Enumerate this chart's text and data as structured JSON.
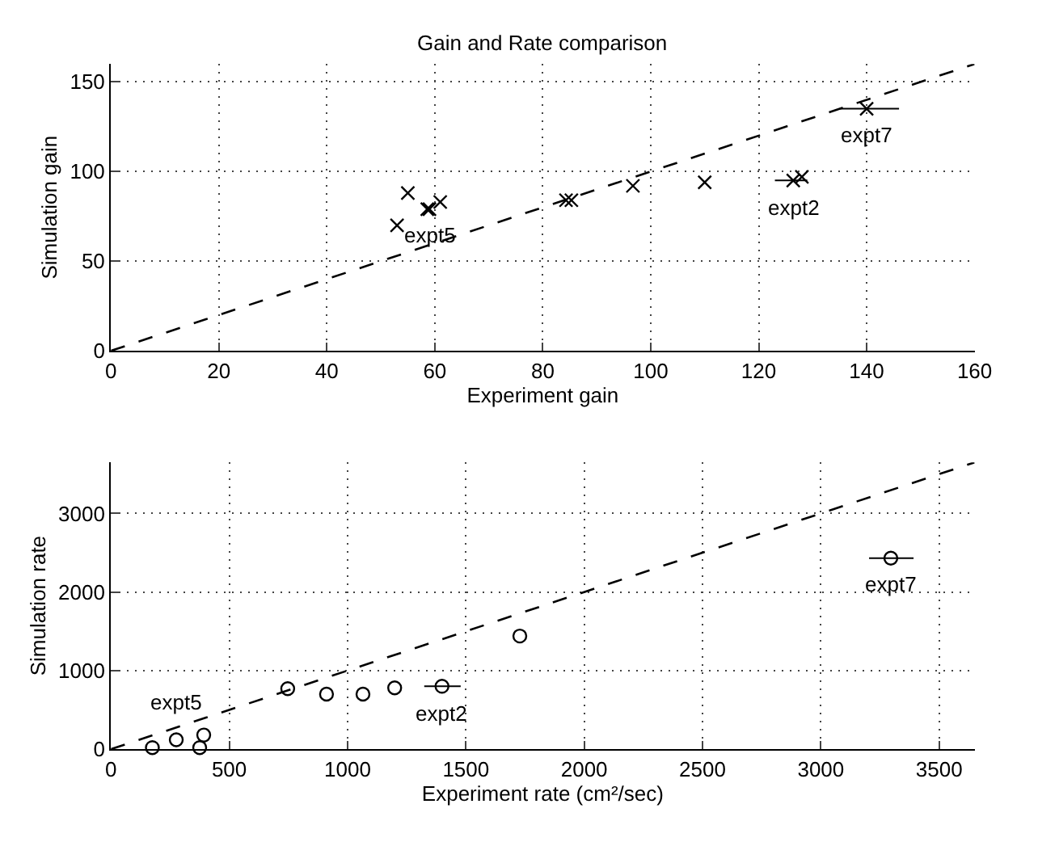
{
  "chart_data": [
    {
      "type": "scatter",
      "title": "Gain and Rate comparison",
      "xlabel": "Experiment gain",
      "ylabel": "Simulation gain",
      "xlim": [
        0,
        160
      ],
      "ylim": [
        0,
        160
      ],
      "xticks": [
        0,
        20,
        40,
        60,
        80,
        100,
        120,
        140,
        160
      ],
      "yticks": [
        0,
        50,
        100,
        150
      ],
      "grid": true,
      "marker": "cross",
      "series": [
        {
          "color": "#000000",
          "x": [
            53,
            55,
            58.6,
            59,
            61,
            84.3,
            85.3,
            96.7,
            110,
            126.4,
            128,
            140
          ],
          "values": [
            70,
            88,
            79,
            79,
            83,
            84,
            84,
            92,
            94,
            95,
            97,
            135
          ],
          "xerrors": [
            null,
            null,
            null,
            null,
            null,
            null,
            null,
            null,
            null,
            [
              123,
              129
            ],
            null,
            [
              135,
              146
            ]
          ]
        },
        {
          "type": "line",
          "line_style": "dashed",
          "marker": "none",
          "color": "#000000",
          "x": [
            0,
            160
          ],
          "values": [
            0,
            160
          ]
        }
      ],
      "annotations": [
        {
          "text": "expt5",
          "x": 59,
          "y": 79
        },
        {
          "text": "expt2",
          "x": 126.4,
          "y": 95
        },
        {
          "text": "expt7",
          "x": 140,
          "y": 135
        }
      ]
    },
    {
      "type": "scatter",
      "xlabel": "Experiment rate (cm²/sec)",
      "ylabel": "Simulation rate",
      "xlim": [
        0,
        3650
      ],
      "ylim": [
        0,
        3650
      ],
      "xticks": [
        0,
        500,
        1000,
        1500,
        2000,
        2500,
        3000,
        3500
      ],
      "yticks": [
        0,
        1000,
        2000,
        3000
      ],
      "grid": true,
      "marker": "circle",
      "series": [
        {
          "color": "#000000",
          "x": [
            175,
            276,
            375,
            392,
            747,
            911,
            1065,
            1199,
            1399,
            1728,
            3296
          ],
          "values": [
            20,
            120,
            20,
            180,
            770,
            700,
            700,
            780,
            800,
            1440,
            2430
          ],
          "xerrors": [
            null,
            null,
            null,
            null,
            null,
            null,
            null,
            null,
            [
              1324,
              1478
            ],
            null,
            [
              3204,
              3392
            ]
          ]
        },
        {
          "type": "line",
          "line_style": "dashed",
          "marker": "none",
          "color": "#000000",
          "x": [
            0,
            3650
          ],
          "values": [
            0,
            3650
          ]
        }
      ],
      "annotations": [
        {
          "text": "expt5",
          "x": 276,
          "y": 120
        },
        {
          "text": "expt2",
          "x": 1399,
          "y": 800
        },
        {
          "text": "expt7",
          "x": 3296,
          "y": 2430
        }
      ]
    }
  ]
}
